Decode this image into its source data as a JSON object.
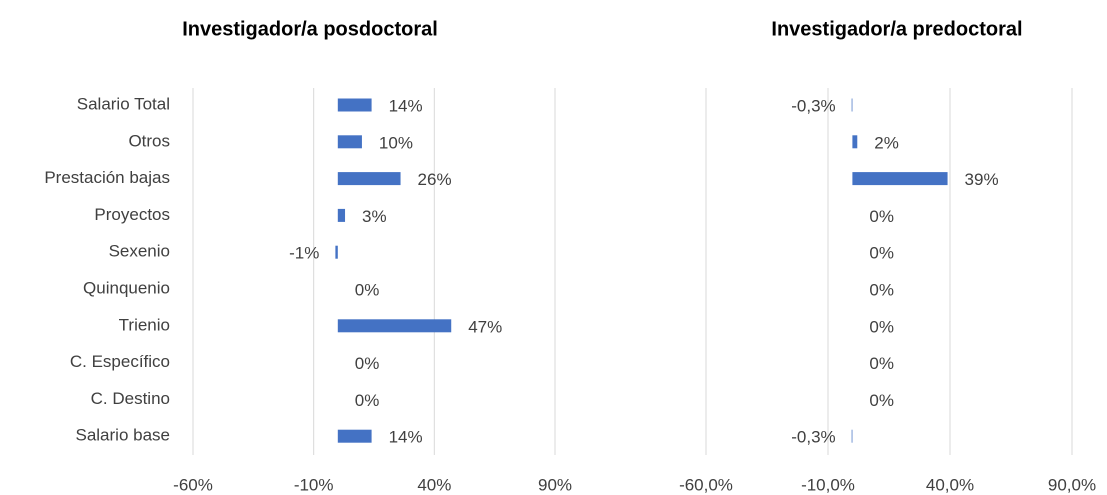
{
  "chart_data": [
    {
      "type": "bar",
      "orientation": "horizontal",
      "title": "Investigador/a posdoctoral",
      "categories": [
        "Salario Total",
        "Otros",
        "Prestación bajas",
        "Proyectos",
        "Sexenio",
        "Quinquenio",
        "Trienio",
        "C. Específico",
        "C. Destino",
        "Salario base"
      ],
      "values": [
        14,
        10,
        26,
        3,
        -1,
        0,
        47,
        0,
        0,
        14
      ],
      "value_labels": [
        "14%",
        "10%",
        "26%",
        "3%",
        "-1%",
        "0%",
        "47%",
        "0%",
        "0%",
        "14%"
      ],
      "color": "#4472c4",
      "xlim": [
        -60,
        90
      ],
      "xticks": [
        {
          "value": -60,
          "label": "-60%"
        },
        {
          "value": -10,
          "label": "-10%"
        },
        {
          "value": 40,
          "label": "40%"
        },
        {
          "value": 90,
          "label": "90%"
        }
      ],
      "grid": true
    },
    {
      "type": "bar",
      "orientation": "horizontal",
      "title": "Investigador/a predoctoral",
      "categories": [
        null,
        null,
        null,
        null,
        null,
        null,
        null,
        null,
        null,
        null
      ],
      "values": [
        -0.3,
        2,
        39,
        0,
        0,
        0,
        0,
        0,
        0,
        -0.3
      ],
      "value_labels": [
        "-0,3%",
        "2%",
        "39%",
        "0%",
        "0%",
        "0%",
        "0%",
        "0%",
        "0%",
        "-0,3%"
      ],
      "color": "#4472c4",
      "xlim": [
        -60,
        90
      ],
      "xticks": [
        {
          "value": -60,
          "label": "-60,0%"
        },
        {
          "value": -10,
          "label": "-10,0%"
        },
        {
          "value": 40,
          "label": "40,0%"
        },
        {
          "value": 90,
          "label": "90,0%"
        }
      ],
      "grid": true
    }
  ]
}
